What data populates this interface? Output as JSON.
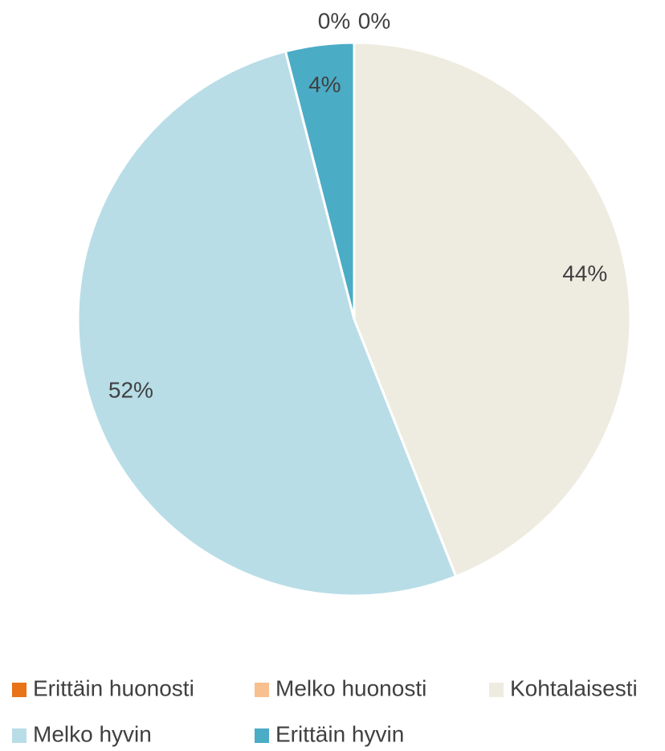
{
  "chart_data": {
    "type": "pie",
    "categories": [
      "Erittäin huonosti",
      "Melko huonosti",
      "Kohtalaisesti",
      "Melko hyvin",
      "Erittäin hyvin"
    ],
    "values": [
      0,
      0,
      44,
      52,
      4
    ],
    "value_labels": [
      "0%",
      "0%",
      "44%",
      "52%",
      "4%"
    ],
    "colors": [
      "#e97317",
      "#f9c08f",
      "#eeebe0",
      "#b8dde7",
      "#4bacc6"
    ],
    "legend": "bottom"
  }
}
